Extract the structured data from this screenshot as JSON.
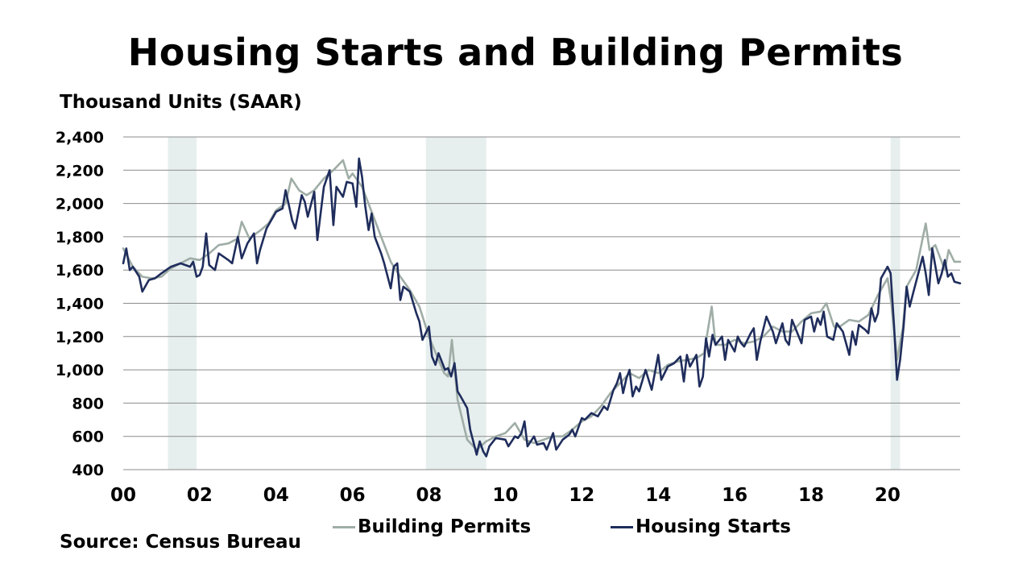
{
  "title": "Housing Starts and Building Permits",
  "y_unit_label": "Thousand Units (SAAR)",
  "source": "Source: Census Bureau",
  "colors": {
    "permits": "#9fada6",
    "starts": "#1f2d5c",
    "recession": "#e6eeee",
    "grid": "#8c8c8c"
  },
  "chart_data": {
    "type": "line",
    "title": "Housing Starts and Building Permits",
    "ylabel": "Thousand Units (SAAR)",
    "xlim": [
      2000,
      2021.9
    ],
    "ylim": [
      400,
      2400
    ],
    "grid": true,
    "legend_position": "bottom",
    "x_ticks": [
      2000,
      2002,
      2004,
      2006,
      2008,
      2010,
      2012,
      2014,
      2016,
      2018,
      2020
    ],
    "x_tick_labels": [
      "00",
      "02",
      "04",
      "06",
      "08",
      "10",
      "12",
      "14",
      "16",
      "18",
      "20"
    ],
    "y_ticks": [
      400,
      600,
      800,
      1000,
      1200,
      1400,
      1600,
      1800,
      2000,
      2200,
      2400
    ],
    "y_tick_labels": [
      "400",
      "600",
      "800",
      "1,000",
      "1,200",
      "1,400",
      "1,600",
      "1,800",
      "2,000",
      "2,200",
      "2,400"
    ],
    "recessions": [
      [
        2001.17,
        2001.92
      ],
      [
        2007.92,
        2009.5
      ],
      [
        2020.08,
        2020.33
      ]
    ],
    "series": [
      {
        "name": "Building Permits",
        "color": "#9fada6",
        "points": [
          [
            2000.0,
            1730
          ],
          [
            2000.25,
            1620
          ],
          [
            2000.5,
            1560
          ],
          [
            2000.75,
            1550
          ],
          [
            2001.0,
            1560
          ],
          [
            2001.25,
            1610
          ],
          [
            2001.5,
            1640
          ],
          [
            2001.75,
            1670
          ],
          [
            2002.0,
            1660
          ],
          [
            2002.25,
            1700
          ],
          [
            2002.5,
            1750
          ],
          [
            2002.75,
            1760
          ],
          [
            2003.0,
            1790
          ],
          [
            2003.1,
            1890
          ],
          [
            2003.3,
            1790
          ],
          [
            2003.6,
            1840
          ],
          [
            2003.8,
            1880
          ],
          [
            2004.0,
            1960
          ],
          [
            2004.25,
            2000
          ],
          [
            2004.4,
            2150
          ],
          [
            2004.6,
            2080
          ],
          [
            2004.8,
            2050
          ],
          [
            2005.0,
            2080
          ],
          [
            2005.25,
            2150
          ],
          [
            2005.5,
            2200
          ],
          [
            2005.75,
            2260
          ],
          [
            2005.9,
            2150
          ],
          [
            2006.0,
            2180
          ],
          [
            2006.25,
            2100
          ],
          [
            2006.5,
            1950
          ],
          [
            2006.75,
            1800
          ],
          [
            2007.0,
            1650
          ],
          [
            2007.25,
            1560
          ],
          [
            2007.5,
            1480
          ],
          [
            2007.75,
            1380
          ],
          [
            2008.0,
            1200
          ],
          [
            2008.25,
            1060
          ],
          [
            2008.4,
            980
          ],
          [
            2008.5,
            960
          ],
          [
            2008.6,
            1180
          ],
          [
            2008.75,
            820
          ],
          [
            2009.0,
            580
          ],
          [
            2009.25,
            520
          ],
          [
            2009.5,
            570
          ],
          [
            2009.75,
            600
          ],
          [
            2010.0,
            620
          ],
          [
            2010.25,
            680
          ],
          [
            2010.5,
            580
          ],
          [
            2010.75,
            560
          ],
          [
            2011.0,
            580
          ],
          [
            2011.25,
            600
          ],
          [
            2011.5,
            600
          ],
          [
            2011.75,
            640
          ],
          [
            2012.0,
            690
          ],
          [
            2012.25,
            720
          ],
          [
            2012.5,
            780
          ],
          [
            2012.75,
            860
          ],
          [
            2013.0,
            920
          ],
          [
            2013.25,
            980
          ],
          [
            2013.5,
            950
          ],
          [
            2013.75,
            1000
          ],
          [
            2014.0,
            980
          ],
          [
            2014.25,
            1030
          ],
          [
            2014.5,
            1050
          ],
          [
            2014.75,
            1060
          ],
          [
            2015.0,
            1070
          ],
          [
            2015.2,
            1100
          ],
          [
            2015.4,
            1380
          ],
          [
            2015.5,
            1150
          ],
          [
            2015.75,
            1150
          ],
          [
            2016.0,
            1180
          ],
          [
            2016.25,
            1160
          ],
          [
            2016.5,
            1170
          ],
          [
            2016.75,
            1200
          ],
          [
            2017.0,
            1260
          ],
          [
            2017.25,
            1230
          ],
          [
            2017.5,
            1230
          ],
          [
            2017.75,
            1290
          ],
          [
            2018.0,
            1340
          ],
          [
            2018.25,
            1350
          ],
          [
            2018.4,
            1400
          ],
          [
            2018.6,
            1260
          ],
          [
            2018.75,
            1260
          ],
          [
            2019.0,
            1300
          ],
          [
            2019.25,
            1290
          ],
          [
            2019.5,
            1330
          ],
          [
            2019.75,
            1450
          ],
          [
            2020.0,
            1550
          ],
          [
            2020.1,
            1400
          ],
          [
            2020.25,
            1060
          ],
          [
            2020.4,
            1250
          ],
          [
            2020.5,
            1500
          ],
          [
            2020.75,
            1600
          ],
          [
            2021.0,
            1880
          ],
          [
            2021.1,
            1720
          ],
          [
            2021.25,
            1750
          ],
          [
            2021.5,
            1600
          ],
          [
            2021.6,
            1720
          ],
          [
            2021.75,
            1650
          ],
          [
            2021.9,
            1650
          ]
        ]
      },
      {
        "name": "Housing Starts",
        "color": "#1f2d5c",
        "points": [
          [
            2000.0,
            1640
          ],
          [
            2000.08,
            1730
          ],
          [
            2000.17,
            1600
          ],
          [
            2000.25,
            1620
          ],
          [
            2000.42,
            1560
          ],
          [
            2000.5,
            1470
          ],
          [
            2000.67,
            1540
          ],
          [
            2000.83,
            1550
          ],
          [
            2001.0,
            1580
          ],
          [
            2001.25,
            1620
          ],
          [
            2001.5,
            1640
          ],
          [
            2001.75,
            1620
          ],
          [
            2001.83,
            1650
          ],
          [
            2001.92,
            1560
          ],
          [
            2002.0,
            1570
          ],
          [
            2002.08,
            1620
          ],
          [
            2002.17,
            1820
          ],
          [
            2002.25,
            1630
          ],
          [
            2002.4,
            1600
          ],
          [
            2002.5,
            1700
          ],
          [
            2002.75,
            1660
          ],
          [
            2002.85,
            1640
          ],
          [
            2003.0,
            1800
          ],
          [
            2003.1,
            1670
          ],
          [
            2003.25,
            1760
          ],
          [
            2003.42,
            1820
          ],
          [
            2003.5,
            1640
          ],
          [
            2003.58,
            1720
          ],
          [
            2003.75,
            1850
          ],
          [
            2004.0,
            1950
          ],
          [
            2004.17,
            1970
          ],
          [
            2004.25,
            2080
          ],
          [
            2004.42,
            1900
          ],
          [
            2004.5,
            1850
          ],
          [
            2004.67,
            2050
          ],
          [
            2004.75,
            2010
          ],
          [
            2004.83,
            1920
          ],
          [
            2005.0,
            2070
          ],
          [
            2005.08,
            1780
          ],
          [
            2005.25,
            2100
          ],
          [
            2005.4,
            2200
          ],
          [
            2005.5,
            1870
          ],
          [
            2005.58,
            2100
          ],
          [
            2005.75,
            2040
          ],
          [
            2005.85,
            2130
          ],
          [
            2006.0,
            2120
          ],
          [
            2006.1,
            1980
          ],
          [
            2006.17,
            2270
          ],
          [
            2006.25,
            2160
          ],
          [
            2006.33,
            1990
          ],
          [
            2006.42,
            1840
          ],
          [
            2006.5,
            1940
          ],
          [
            2006.58,
            1800
          ],
          [
            2006.75,
            1700
          ],
          [
            2006.83,
            1640
          ],
          [
            2007.0,
            1490
          ],
          [
            2007.08,
            1620
          ],
          [
            2007.17,
            1640
          ],
          [
            2007.25,
            1420
          ],
          [
            2007.33,
            1500
          ],
          [
            2007.5,
            1470
          ],
          [
            2007.67,
            1340
          ],
          [
            2007.75,
            1290
          ],
          [
            2007.83,
            1180
          ],
          [
            2008.0,
            1260
          ],
          [
            2008.08,
            1080
          ],
          [
            2008.17,
            1030
          ],
          [
            2008.25,
            1100
          ],
          [
            2008.42,
            1000
          ],
          [
            2008.5,
            1010
          ],
          [
            2008.58,
            960
          ],
          [
            2008.67,
            1040
          ],
          [
            2008.75,
            870
          ],
          [
            2008.83,
            840
          ],
          [
            2009.0,
            770
          ],
          [
            2009.08,
            640
          ],
          [
            2009.17,
            560
          ],
          [
            2009.25,
            490
          ],
          [
            2009.33,
            570
          ],
          [
            2009.42,
            510
          ],
          [
            2009.5,
            480
          ],
          [
            2009.58,
            540
          ],
          [
            2009.75,
            590
          ],
          [
            2010.0,
            580
          ],
          [
            2010.08,
            540
          ],
          [
            2010.25,
            600
          ],
          [
            2010.33,
            590
          ],
          [
            2010.42,
            620
          ],
          [
            2010.5,
            690
          ],
          [
            2010.58,
            540
          ],
          [
            2010.75,
            600
          ],
          [
            2010.83,
            550
          ],
          [
            2011.0,
            560
          ],
          [
            2011.08,
            520
          ],
          [
            2011.25,
            620
          ],
          [
            2011.33,
            520
          ],
          [
            2011.5,
            580
          ],
          [
            2011.67,
            610
          ],
          [
            2011.75,
            640
          ],
          [
            2011.83,
            600
          ],
          [
            2012.0,
            710
          ],
          [
            2012.08,
            700
          ],
          [
            2012.25,
            740
          ],
          [
            2012.42,
            720
          ],
          [
            2012.5,
            750
          ],
          [
            2012.58,
            780
          ],
          [
            2012.67,
            760
          ],
          [
            2012.83,
            880
          ],
          [
            2012.92,
            920
          ],
          [
            2013.0,
            980
          ],
          [
            2013.08,
            860
          ],
          [
            2013.17,
            950
          ],
          [
            2013.25,
            1000
          ],
          [
            2013.33,
            840
          ],
          [
            2013.42,
            900
          ],
          [
            2013.5,
            870
          ],
          [
            2013.67,
            1000
          ],
          [
            2013.83,
            880
          ],
          [
            2014.0,
            1090
          ],
          [
            2014.08,
            940
          ],
          [
            2014.25,
            1020
          ],
          [
            2014.42,
            1040
          ],
          [
            2014.58,
            1080
          ],
          [
            2014.67,
            930
          ],
          [
            2014.75,
            1090
          ],
          [
            2014.83,
            1020
          ],
          [
            2015.0,
            1090
          ],
          [
            2015.08,
            900
          ],
          [
            2015.17,
            960
          ],
          [
            2015.25,
            1190
          ],
          [
            2015.33,
            1080
          ],
          [
            2015.42,
            1210
          ],
          [
            2015.5,
            1150
          ],
          [
            2015.67,
            1200
          ],
          [
            2015.75,
            1060
          ],
          [
            2015.83,
            1180
          ],
          [
            2016.0,
            1110
          ],
          [
            2016.08,
            1200
          ],
          [
            2016.17,
            1160
          ],
          [
            2016.25,
            1140
          ],
          [
            2016.42,
            1220
          ],
          [
            2016.5,
            1250
          ],
          [
            2016.58,
            1060
          ],
          [
            2016.67,
            1170
          ],
          [
            2016.83,
            1320
          ],
          [
            2017.0,
            1230
          ],
          [
            2017.08,
            1160
          ],
          [
            2017.25,
            1280
          ],
          [
            2017.33,
            1180
          ],
          [
            2017.42,
            1150
          ],
          [
            2017.5,
            1300
          ],
          [
            2017.75,
            1160
          ],
          [
            2017.83,
            1300
          ],
          [
            2018.0,
            1320
          ],
          [
            2018.08,
            1230
          ],
          [
            2018.17,
            1310
          ],
          [
            2018.25,
            1270
          ],
          [
            2018.33,
            1350
          ],
          [
            2018.42,
            1200
          ],
          [
            2018.58,
            1180
          ],
          [
            2018.67,
            1280
          ],
          [
            2018.83,
            1230
          ],
          [
            2019.0,
            1090
          ],
          [
            2019.08,
            1230
          ],
          [
            2019.17,
            1150
          ],
          [
            2019.25,
            1270
          ],
          [
            2019.42,
            1240
          ],
          [
            2019.5,
            1220
          ],
          [
            2019.58,
            1370
          ],
          [
            2019.67,
            1290
          ],
          [
            2019.75,
            1340
          ],
          [
            2019.83,
            1550
          ],
          [
            2020.0,
            1620
          ],
          [
            2020.08,
            1580
          ],
          [
            2020.17,
            1270
          ],
          [
            2020.25,
            940
          ],
          [
            2020.33,
            1060
          ],
          [
            2020.42,
            1260
          ],
          [
            2020.5,
            1500
          ],
          [
            2020.58,
            1380
          ],
          [
            2020.67,
            1460
          ],
          [
            2020.75,
            1530
          ],
          [
            2020.92,
            1680
          ],
          [
            2021.0,
            1580
          ],
          [
            2021.08,
            1450
          ],
          [
            2021.17,
            1730
          ],
          [
            2021.33,
            1520
          ],
          [
            2021.42,
            1580
          ],
          [
            2021.5,
            1660
          ],
          [
            2021.58,
            1560
          ],
          [
            2021.67,
            1580
          ],
          [
            2021.75,
            1530
          ],
          [
            2021.9,
            1520
          ]
        ]
      }
    ]
  },
  "legend": {
    "permits_label": "Building Permits",
    "starts_label": "Housing Starts"
  }
}
